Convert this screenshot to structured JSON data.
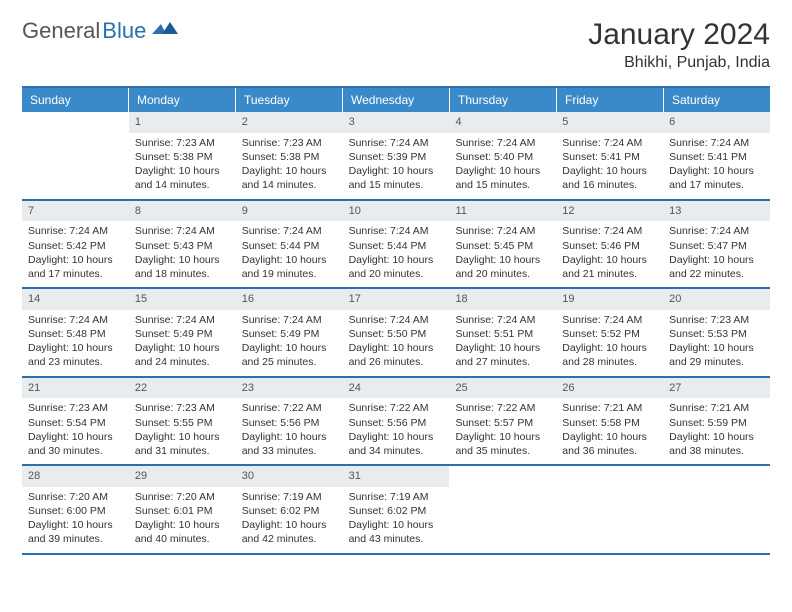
{
  "logo": {
    "general": "General",
    "blue": "Blue"
  },
  "title": "January 2024",
  "location": "Bhikhi, Punjab, India",
  "colors": {
    "header_bg": "#3a8ac9",
    "border": "#2b6fb0",
    "daynum_bg": "#e9ecef",
    "text": "#333333"
  },
  "dow": [
    "Sunday",
    "Monday",
    "Tuesday",
    "Wednesday",
    "Thursday",
    "Friday",
    "Saturday"
  ],
  "weeks": [
    [
      {
        "n": "",
        "sr": "",
        "ss": "",
        "dl": ""
      },
      {
        "n": "1",
        "sr": "Sunrise: 7:23 AM",
        "ss": "Sunset: 5:38 PM",
        "dl": "Daylight: 10 hours and 14 minutes."
      },
      {
        "n": "2",
        "sr": "Sunrise: 7:23 AM",
        "ss": "Sunset: 5:38 PM",
        "dl": "Daylight: 10 hours and 14 minutes."
      },
      {
        "n": "3",
        "sr": "Sunrise: 7:24 AM",
        "ss": "Sunset: 5:39 PM",
        "dl": "Daylight: 10 hours and 15 minutes."
      },
      {
        "n": "4",
        "sr": "Sunrise: 7:24 AM",
        "ss": "Sunset: 5:40 PM",
        "dl": "Daylight: 10 hours and 15 minutes."
      },
      {
        "n": "5",
        "sr": "Sunrise: 7:24 AM",
        "ss": "Sunset: 5:41 PM",
        "dl": "Daylight: 10 hours and 16 minutes."
      },
      {
        "n": "6",
        "sr": "Sunrise: 7:24 AM",
        "ss": "Sunset: 5:41 PM",
        "dl": "Daylight: 10 hours and 17 minutes."
      }
    ],
    [
      {
        "n": "7",
        "sr": "Sunrise: 7:24 AM",
        "ss": "Sunset: 5:42 PM",
        "dl": "Daylight: 10 hours and 17 minutes."
      },
      {
        "n": "8",
        "sr": "Sunrise: 7:24 AM",
        "ss": "Sunset: 5:43 PM",
        "dl": "Daylight: 10 hours and 18 minutes."
      },
      {
        "n": "9",
        "sr": "Sunrise: 7:24 AM",
        "ss": "Sunset: 5:44 PM",
        "dl": "Daylight: 10 hours and 19 minutes."
      },
      {
        "n": "10",
        "sr": "Sunrise: 7:24 AM",
        "ss": "Sunset: 5:44 PM",
        "dl": "Daylight: 10 hours and 20 minutes."
      },
      {
        "n": "11",
        "sr": "Sunrise: 7:24 AM",
        "ss": "Sunset: 5:45 PM",
        "dl": "Daylight: 10 hours and 20 minutes."
      },
      {
        "n": "12",
        "sr": "Sunrise: 7:24 AM",
        "ss": "Sunset: 5:46 PM",
        "dl": "Daylight: 10 hours and 21 minutes."
      },
      {
        "n": "13",
        "sr": "Sunrise: 7:24 AM",
        "ss": "Sunset: 5:47 PM",
        "dl": "Daylight: 10 hours and 22 minutes."
      }
    ],
    [
      {
        "n": "14",
        "sr": "Sunrise: 7:24 AM",
        "ss": "Sunset: 5:48 PM",
        "dl": "Daylight: 10 hours and 23 minutes."
      },
      {
        "n": "15",
        "sr": "Sunrise: 7:24 AM",
        "ss": "Sunset: 5:49 PM",
        "dl": "Daylight: 10 hours and 24 minutes."
      },
      {
        "n": "16",
        "sr": "Sunrise: 7:24 AM",
        "ss": "Sunset: 5:49 PM",
        "dl": "Daylight: 10 hours and 25 minutes."
      },
      {
        "n": "17",
        "sr": "Sunrise: 7:24 AM",
        "ss": "Sunset: 5:50 PM",
        "dl": "Daylight: 10 hours and 26 minutes."
      },
      {
        "n": "18",
        "sr": "Sunrise: 7:24 AM",
        "ss": "Sunset: 5:51 PM",
        "dl": "Daylight: 10 hours and 27 minutes."
      },
      {
        "n": "19",
        "sr": "Sunrise: 7:24 AM",
        "ss": "Sunset: 5:52 PM",
        "dl": "Daylight: 10 hours and 28 minutes."
      },
      {
        "n": "20",
        "sr": "Sunrise: 7:23 AM",
        "ss": "Sunset: 5:53 PM",
        "dl": "Daylight: 10 hours and 29 minutes."
      }
    ],
    [
      {
        "n": "21",
        "sr": "Sunrise: 7:23 AM",
        "ss": "Sunset: 5:54 PM",
        "dl": "Daylight: 10 hours and 30 minutes."
      },
      {
        "n": "22",
        "sr": "Sunrise: 7:23 AM",
        "ss": "Sunset: 5:55 PM",
        "dl": "Daylight: 10 hours and 31 minutes."
      },
      {
        "n": "23",
        "sr": "Sunrise: 7:22 AM",
        "ss": "Sunset: 5:56 PM",
        "dl": "Daylight: 10 hours and 33 minutes."
      },
      {
        "n": "24",
        "sr": "Sunrise: 7:22 AM",
        "ss": "Sunset: 5:56 PM",
        "dl": "Daylight: 10 hours and 34 minutes."
      },
      {
        "n": "25",
        "sr": "Sunrise: 7:22 AM",
        "ss": "Sunset: 5:57 PM",
        "dl": "Daylight: 10 hours and 35 minutes."
      },
      {
        "n": "26",
        "sr": "Sunrise: 7:21 AM",
        "ss": "Sunset: 5:58 PM",
        "dl": "Daylight: 10 hours and 36 minutes."
      },
      {
        "n": "27",
        "sr": "Sunrise: 7:21 AM",
        "ss": "Sunset: 5:59 PM",
        "dl": "Daylight: 10 hours and 38 minutes."
      }
    ],
    [
      {
        "n": "28",
        "sr": "Sunrise: 7:20 AM",
        "ss": "Sunset: 6:00 PM",
        "dl": "Daylight: 10 hours and 39 minutes."
      },
      {
        "n": "29",
        "sr": "Sunrise: 7:20 AM",
        "ss": "Sunset: 6:01 PM",
        "dl": "Daylight: 10 hours and 40 minutes."
      },
      {
        "n": "30",
        "sr": "Sunrise: 7:19 AM",
        "ss": "Sunset: 6:02 PM",
        "dl": "Daylight: 10 hours and 42 minutes."
      },
      {
        "n": "31",
        "sr": "Sunrise: 7:19 AM",
        "ss": "Sunset: 6:02 PM",
        "dl": "Daylight: 10 hours and 43 minutes."
      },
      {
        "n": "",
        "sr": "",
        "ss": "",
        "dl": ""
      },
      {
        "n": "",
        "sr": "",
        "ss": "",
        "dl": ""
      },
      {
        "n": "",
        "sr": "",
        "ss": "",
        "dl": ""
      }
    ]
  ]
}
